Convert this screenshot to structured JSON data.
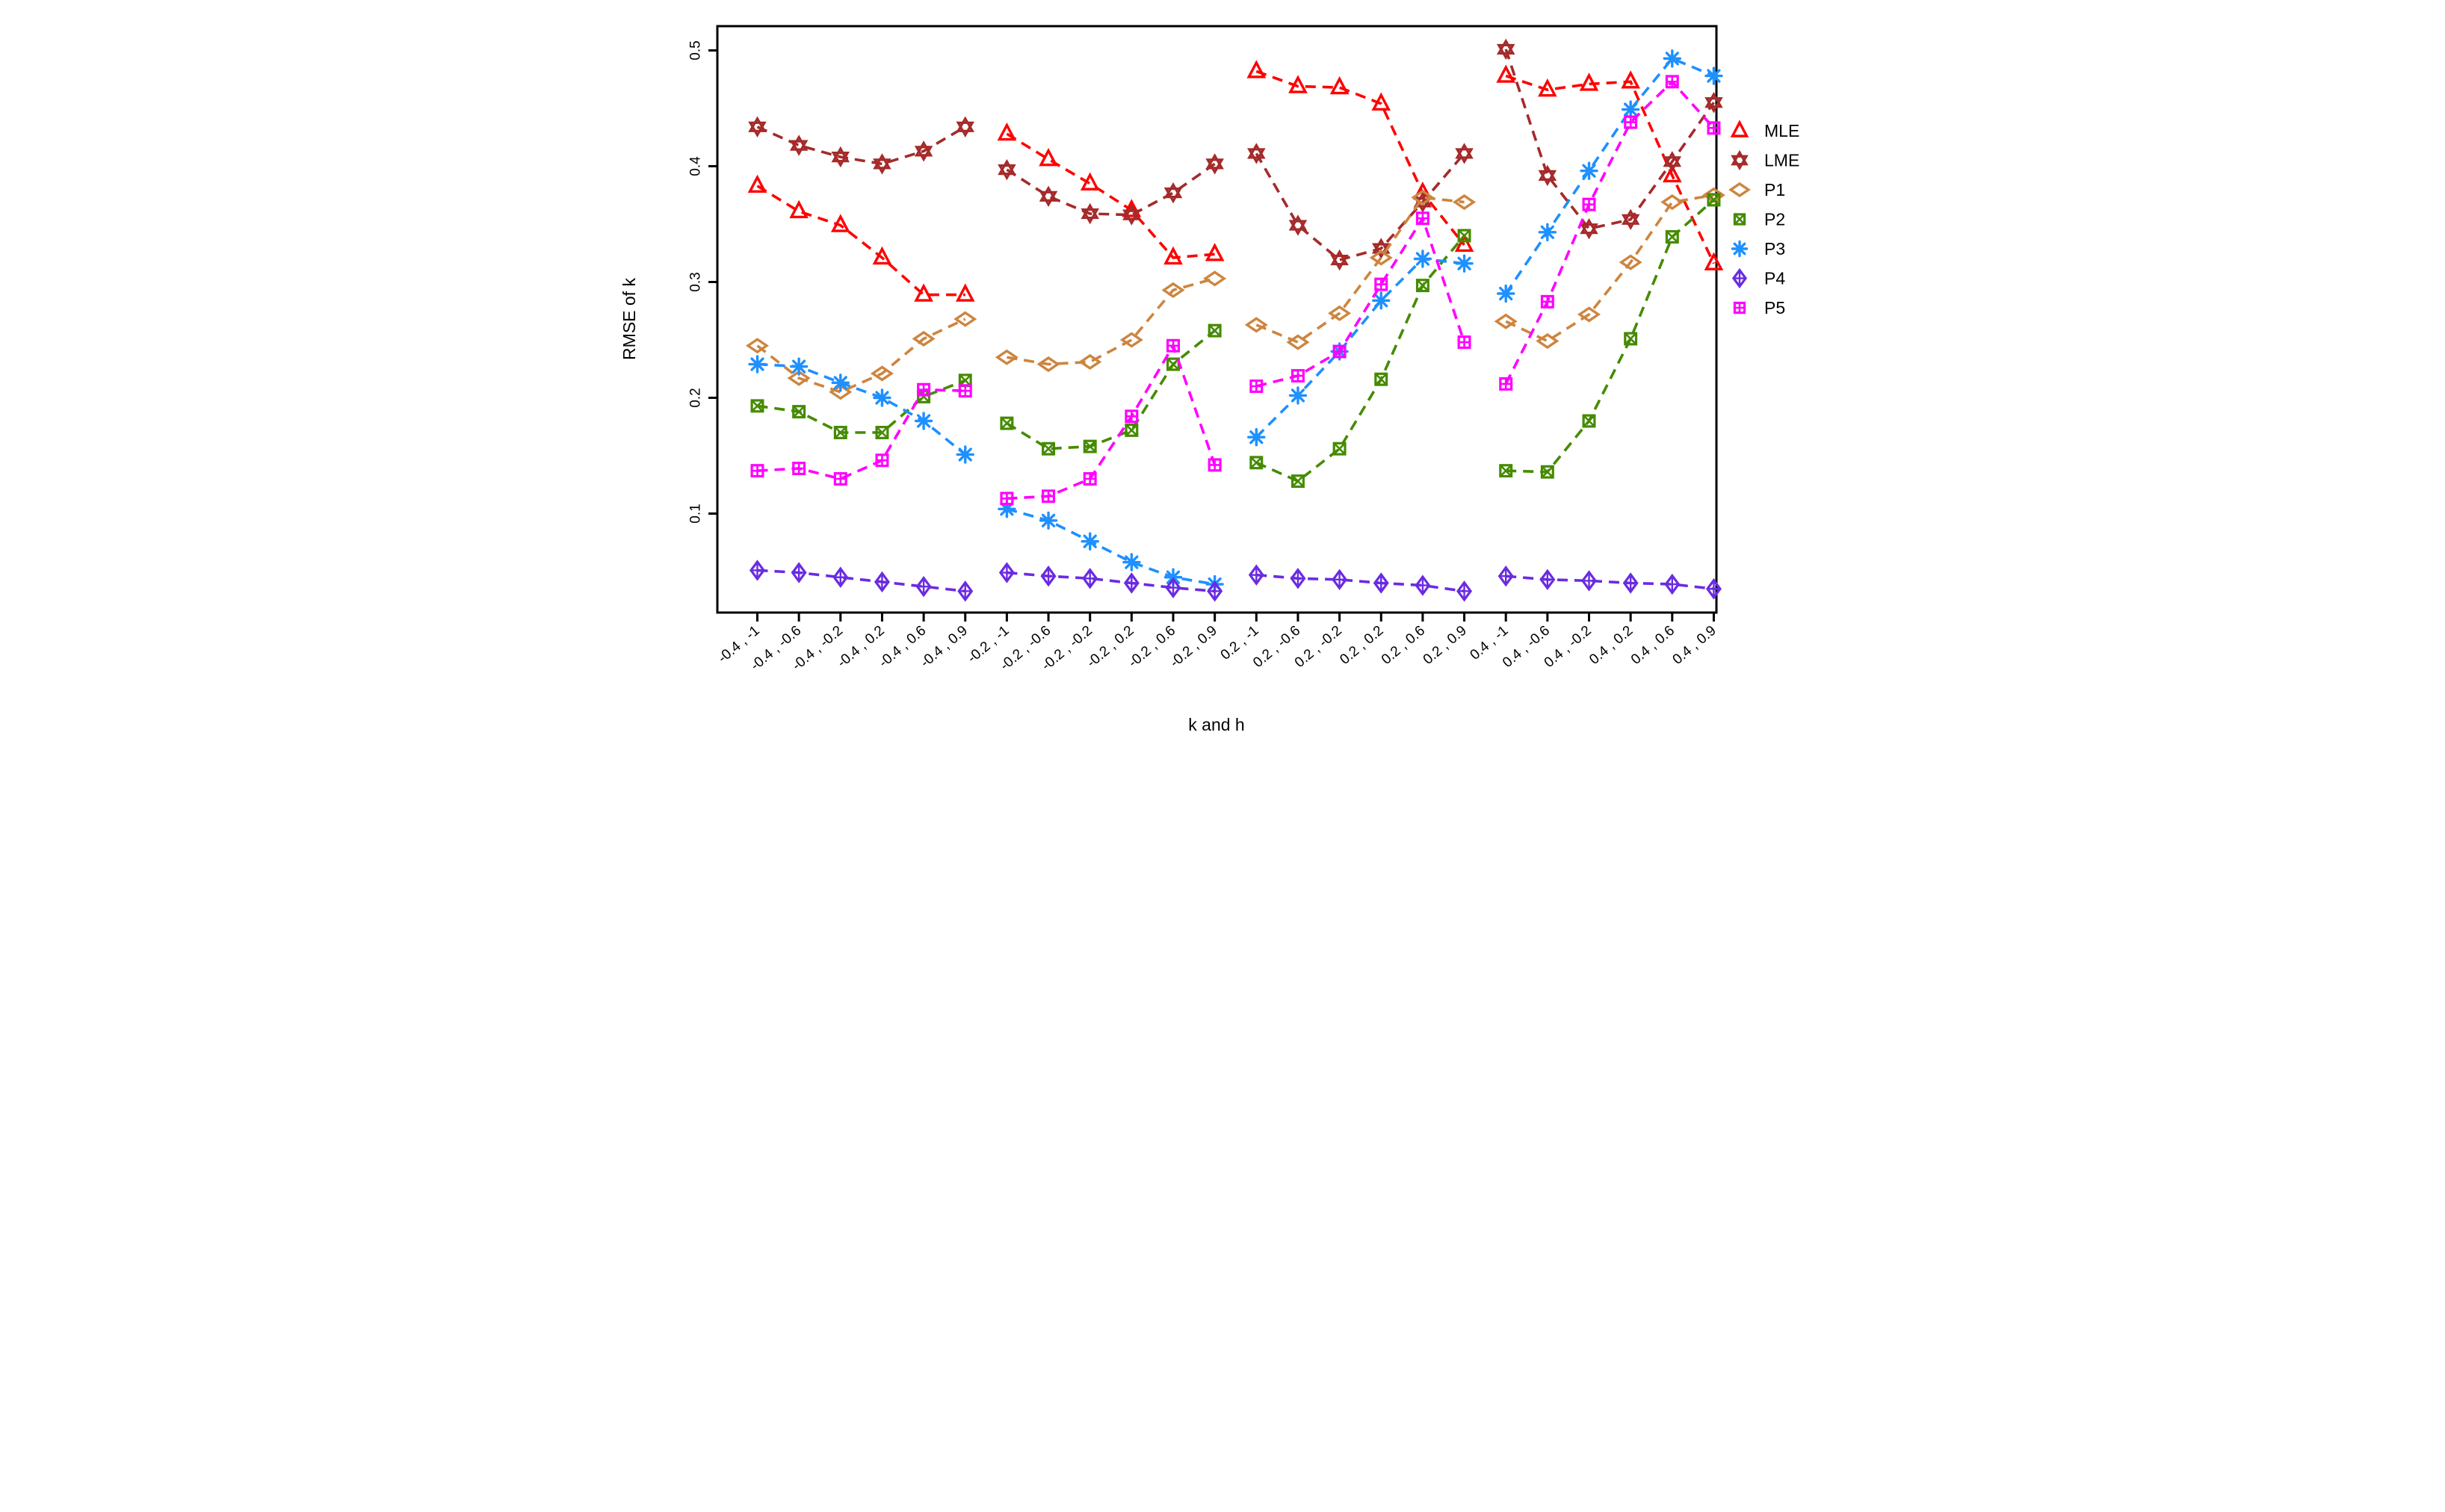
{
  "chart_data": {
    "type": "line",
    "title": "",
    "xlabel": "k and h",
    "ylabel": "RMSE of k",
    "ylim": [
      0.015,
      0.52
    ],
    "y_ticks": [
      0.1,
      0.2,
      0.3,
      0.4,
      0.5
    ],
    "y_tick_labels": [
      "0.1",
      "0.2",
      "0.3",
      "0.4",
      "0.5"
    ],
    "grid": false,
    "legend_position": "right-outside",
    "line_style": "dashed",
    "group_size": 6,
    "categories": [
      "-0.4 , -1",
      "-0.4 , -0.6",
      "-0.4 , -0.2",
      "-0.4 , 0.2",
      "-0.4 , 0.6",
      "-0.4 , 0.9",
      "-0.2 , -1",
      "-0.2 , -0.6",
      "-0.2 , -0.2",
      "-0.2 , 0.2",
      "-0.2 , 0.6",
      "-0.2 , 0.9",
      "0.2 , -1",
      "0.2 , -0.6",
      "0.2 , -0.2",
      "0.2 , 0.2",
      "0.2 , 0.6",
      "0.2 , 0.9",
      "0.4 , -1",
      "0.4 , -0.6",
      "0.4 , -0.2",
      "0.4 , 0.2",
      "0.4 , 0.6",
      "0.4 , 0.9"
    ],
    "series": [
      {
        "name": "MLE",
        "color": "#FF0000",
        "marker": "triangle-up-open",
        "values": [
          0.383,
          0.361,
          0.349,
          0.321,
          0.289,
          0.289,
          0.428,
          0.406,
          0.385,
          0.362,
          0.321,
          0.324,
          0.482,
          0.469,
          0.468,
          0.454,
          0.377,
          0.332,
          0.478,
          0.466,
          0.471,
          0.473,
          0.392,
          0.316
        ]
      },
      {
        "name": "LME",
        "color": "#A52A2A",
        "marker": "star-of-david",
        "values": [
          0.434,
          0.418,
          0.408,
          0.402,
          0.413,
          0.434,
          0.397,
          0.374,
          0.359,
          0.358,
          0.377,
          0.402,
          0.411,
          0.349,
          0.319,
          0.329,
          0.369,
          0.411,
          0.501,
          0.392,
          0.346,
          0.354,
          0.404,
          0.455
        ]
      },
      {
        "name": "P1",
        "color": "#CD853F",
        "marker": "diamond-open",
        "values": [
          0.245,
          0.217,
          0.205,
          0.221,
          0.251,
          0.268,
          0.235,
          0.229,
          0.231,
          0.25,
          0.293,
          0.303,
          0.263,
          0.248,
          0.273,
          0.321,
          0.373,
          0.369,
          0.266,
          0.249,
          0.272,
          0.317,
          0.369,
          0.375
        ]
      },
      {
        "name": "P2",
        "color": "#458B00",
        "marker": "square-x",
        "values": [
          0.193,
          0.188,
          0.17,
          0.17,
          0.201,
          0.215,
          0.178,
          0.156,
          0.158,
          0.172,
          0.229,
          0.258,
          0.144,
          0.128,
          0.156,
          0.216,
          0.297,
          0.34,
          0.137,
          0.136,
          0.18,
          0.251,
          0.339,
          0.371
        ]
      },
      {
        "name": "P3",
        "color": "#1E90FF",
        "marker": "asterisk",
        "values": [
          0.229,
          0.227,
          0.213,
          0.2,
          0.18,
          0.151,
          0.104,
          0.094,
          0.076,
          0.058,
          0.045,
          0.039,
          0.166,
          0.202,
          0.24,
          0.284,
          0.32,
          0.316,
          0.29,
          0.343,
          0.396,
          0.449,
          0.493,
          0.478
        ]
      },
      {
        "name": "P4",
        "color": "#6A2BE2",
        "marker": "diamond-plus",
        "values": [
          0.051,
          0.049,
          0.045,
          0.041,
          0.037,
          0.033,
          0.049,
          0.046,
          0.044,
          0.04,
          0.036,
          0.033,
          0.047,
          0.044,
          0.043,
          0.04,
          0.038,
          0.033,
          0.046,
          0.043,
          0.042,
          0.04,
          0.039,
          0.035
        ]
      },
      {
        "name": "P5",
        "color": "#FF00FF",
        "marker": "square-plus",
        "values": [
          0.137,
          0.139,
          0.13,
          0.146,
          0.207,
          0.206,
          0.113,
          0.115,
          0.13,
          0.184,
          0.245,
          0.142,
          0.21,
          0.219,
          0.24,
          0.298,
          0.355,
          0.248,
          0.212,
          0.283,
          0.367,
          0.438,
          0.473,
          0.433
        ]
      }
    ]
  },
  "legend": {
    "items": [
      {
        "label": "MLE"
      },
      {
        "label": "LME"
      },
      {
        "label": "P1"
      },
      {
        "label": "P2"
      },
      {
        "label": "P3"
      },
      {
        "label": "P4"
      },
      {
        "label": "P5"
      }
    ]
  }
}
